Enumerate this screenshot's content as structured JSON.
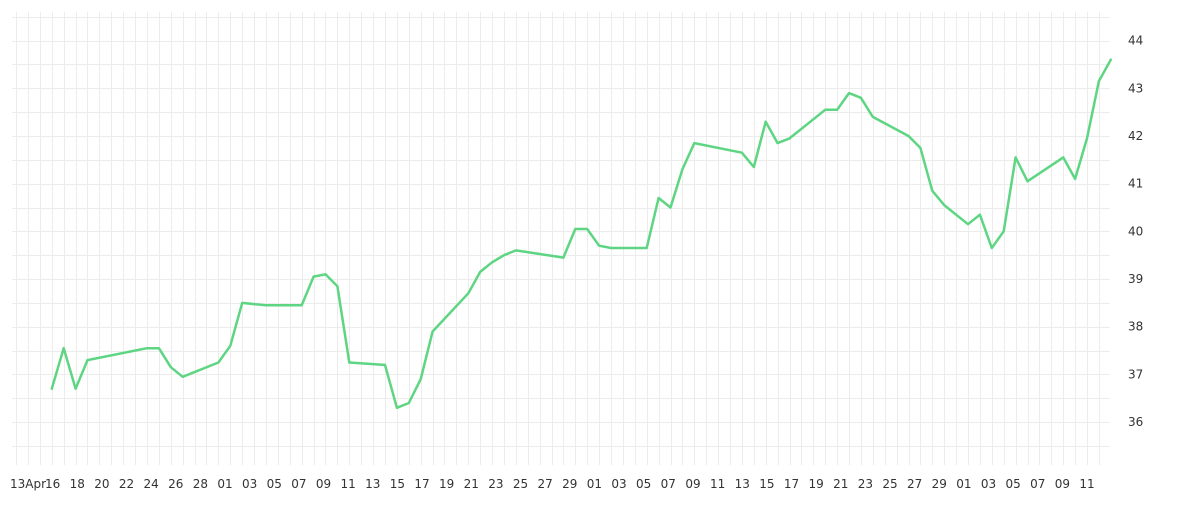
{
  "chart_data": {
    "type": "line",
    "title": "",
    "xlabel": "",
    "ylabel": "",
    "grid": true,
    "line_color": "#5ed582",
    "x_tick_labels": [
      "13Apr",
      "16",
      "18",
      "20",
      "22",
      "24",
      "26",
      "28",
      "01",
      "03",
      "05",
      "07",
      "09",
      "11",
      "13",
      "15",
      "17",
      "19",
      "21",
      "23",
      "25",
      "27",
      "29",
      "01",
      "03",
      "05",
      "07",
      "09",
      "11",
      "13",
      "15",
      "17",
      "19",
      "21",
      "23",
      "25",
      "27",
      "29",
      "01",
      "03",
      "05",
      "07",
      "09",
      "11"
    ],
    "y_ticks": [
      36,
      37,
      38,
      39,
      40,
      41,
      42,
      43,
      44
    ],
    "ylim": [
      35.1,
      44.6
    ],
    "series": [
      {
        "x": [
          "2024-04-15",
          "2024-04-16",
          "2024-04-17",
          "2024-04-18",
          "2024-04-23",
          "2024-04-24",
          "2024-04-25",
          "2024-04-26",
          "2024-04-29",
          "2024-04-30",
          "2024-05-01",
          "2024-05-03",
          "2024-05-06",
          "2024-05-07",
          "2024-05-08",
          "2024-05-09",
          "2024-05-10",
          "2024-05-13",
          "2024-05-14",
          "2024-05-15",
          "2024-05-16",
          "2024-05-17",
          "2024-05-20",
          "2024-05-21",
          "2024-05-22",
          "2024-05-23",
          "2024-05-24",
          "2024-05-28",
          "2024-05-29",
          "2024-05-30",
          "2024-05-31",
          "2024-06-01",
          "2024-06-04",
          "2024-06-05",
          "2024-06-06",
          "2024-06-07",
          "2024-06-08",
          "2024-06-12",
          "2024-06-13",
          "2024-06-14",
          "2024-06-15",
          "2024-06-16",
          "2024-06-19",
          "2024-06-20",
          "2024-06-21",
          "2024-06-22",
          "2024-06-23",
          "2024-06-26",
          "2024-06-27",
          "2024-06-28",
          "2024-06-29",
          "2024-07-01",
          "2024-07-02",
          "2024-07-03",
          "2024-07-04",
          "2024-07-05",
          "2024-07-06",
          "2024-07-09",
          "2024-07-10",
          "2024-07-11",
          "2024-07-12",
          "2024-07-13"
        ],
        "values": [
          36.7,
          37.55,
          36.7,
          37.3,
          37.55,
          37.55,
          37.15,
          36.95,
          37.25,
          37.6,
          38.5,
          38.45,
          38.45,
          39.05,
          39.1,
          38.85,
          37.25,
          37.2,
          36.3,
          36.4,
          36.9,
          37.9,
          38.7,
          39.15,
          39.35,
          39.5,
          39.6,
          39.45,
          40.05,
          40.05,
          39.7,
          39.65,
          39.65,
          40.7,
          40.5,
          41.3,
          41.85,
          41.65,
          41.35,
          42.3,
          41.85,
          41.95,
          42.55,
          42.55,
          42.9,
          42.8,
          42.4,
          42.0,
          41.75,
          40.85,
          40.55,
          40.15,
          40.35,
          39.65,
          40.0,
          41.55,
          41.05,
          41.55,
          41.1,
          41.95,
          43.15,
          43.6
        ]
      }
    ]
  }
}
